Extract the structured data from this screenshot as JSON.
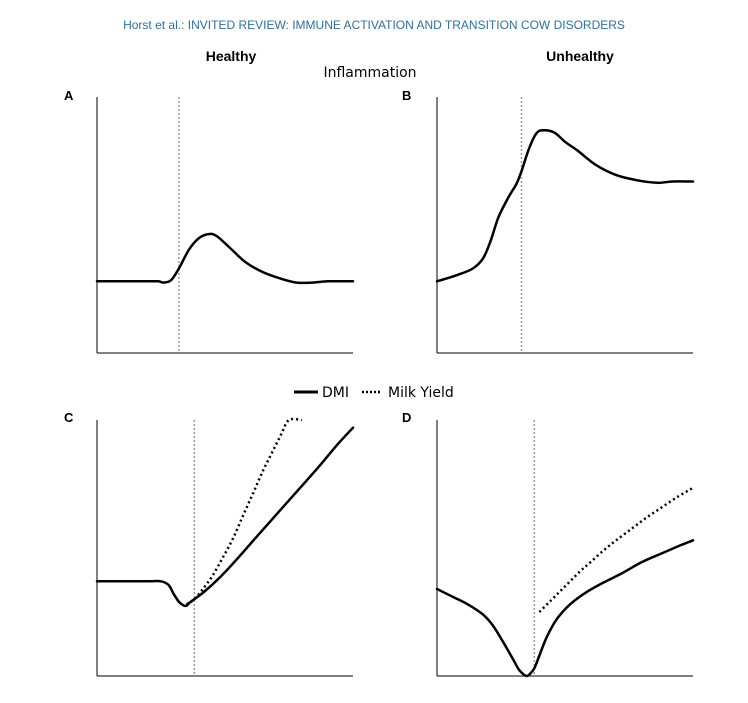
{
  "header": "Horst et al.: INVITED REVIEW: IMMUNE ACTIVATION AND TRANSITION COW DISORDERS",
  "columns": {
    "left": "Healthy",
    "right": "Unhealthy"
  },
  "rows": {
    "top": "Inflammation"
  },
  "legend": {
    "dmi": "DMI",
    "milk": "Milk Yield"
  },
  "colors": {
    "header": "#2e6fa7",
    "line": "#000000",
    "vline": "#9a9a9a"
  },
  "chart_data": [
    {
      "panel": "A",
      "type": "line",
      "xlim": [
        0,
        100
      ],
      "ylim": [
        0,
        100
      ],
      "divider_x": 32,
      "series": [
        {
          "name": "",
          "style": "solid",
          "x": [
            0,
            10,
            20,
            24,
            26,
            29,
            32,
            36,
            40,
            44,
            47,
            52,
            58,
            65,
            72,
            78,
            84,
            90,
            95,
            100
          ],
          "y": [
            28,
            28,
            28,
            28,
            27.5,
            28.5,
            33,
            40.5,
            45,
            46.5,
            45.5,
            41,
            35.5,
            31.5,
            29,
            27.5,
            27.5,
            28,
            28,
            28
          ]
        }
      ]
    },
    {
      "panel": "B",
      "type": "line",
      "xlim": [
        0,
        100
      ],
      "ylim": [
        0,
        100
      ],
      "divider_x": 33,
      "series": [
        {
          "name": "",
          "style": "solid",
          "x": [
            0,
            8,
            14,
            18,
            21,
            24,
            28,
            31,
            33,
            36,
            39,
            42,
            46,
            50,
            55,
            62,
            70,
            78,
            86,
            92,
            100
          ],
          "y": [
            28,
            30.5,
            33,
            37,
            44,
            53,
            61,
            66,
            71,
            80,
            86,
            87,
            86,
            82.5,
            79,
            73.5,
            69.5,
            67.5,
            66.5,
            67,
            67
          ]
        }
      ]
    },
    {
      "panel": "C",
      "type": "line",
      "xlim": [
        0,
        100
      ],
      "ylim": [
        0,
        100
      ],
      "divider_x": 38,
      "series": [
        {
          "name": "DMI",
          "style": "solid",
          "x": [
            0,
            10,
            20,
            25,
            28,
            30,
            32,
            34,
            35,
            36,
            38,
            42,
            48,
            55,
            62,
            70,
            78,
            86,
            94,
            100
          ],
          "y": [
            37,
            37,
            37,
            37,
            35.5,
            32,
            29,
            27.5,
            27.5,
            28.5,
            30,
            33,
            38.5,
            46,
            54,
            63,
            72,
            81,
            90.5,
            97
          ]
        },
        {
          "name": "Milk Yield",
          "style": "dotted",
          "x": [
            35,
            38,
            41,
            45,
            49,
            53,
            57,
            61,
            65,
            69,
            72,
            75,
            80
          ],
          "y": [
            28,
            30,
            33.5,
            39,
            46,
            53.5,
            62.5,
            71.5,
            80.5,
            88.5,
            94.5,
            100,
            100
          ]
        }
      ]
    },
    {
      "panel": "D",
      "type": "line",
      "xlim": [
        0,
        100
      ],
      "ylim": [
        0,
        100
      ],
      "divider_x": 38,
      "series": [
        {
          "name": "DMI",
          "style": "solid",
          "x": [
            0,
            6,
            12,
            18,
            22,
            26,
            30,
            32,
            34,
            35,
            36,
            38,
            40,
            43,
            47,
            52,
            58,
            65,
            72,
            80,
            88,
            95,
            100
          ],
          "y": [
            34,
            31,
            28,
            24,
            19.5,
            13,
            6,
            2.5,
            0.5,
            0,
            0.5,
            3,
            8,
            15.5,
            22.5,
            28,
            32.5,
            36.5,
            40,
            44.5,
            48,
            51,
            53
          ]
        },
        {
          "name": "Milk Yield",
          "style": "dotted",
          "x": [
            40,
            44,
            48,
            52,
            56,
            60,
            65,
            70,
            76,
            82,
            88,
            94,
            100
          ],
          "y": [
            25,
            29,
            33,
            37,
            41,
            44.5,
            49,
            53,
            57.5,
            62,
            66,
            70,
            73.5
          ]
        }
      ]
    }
  ]
}
